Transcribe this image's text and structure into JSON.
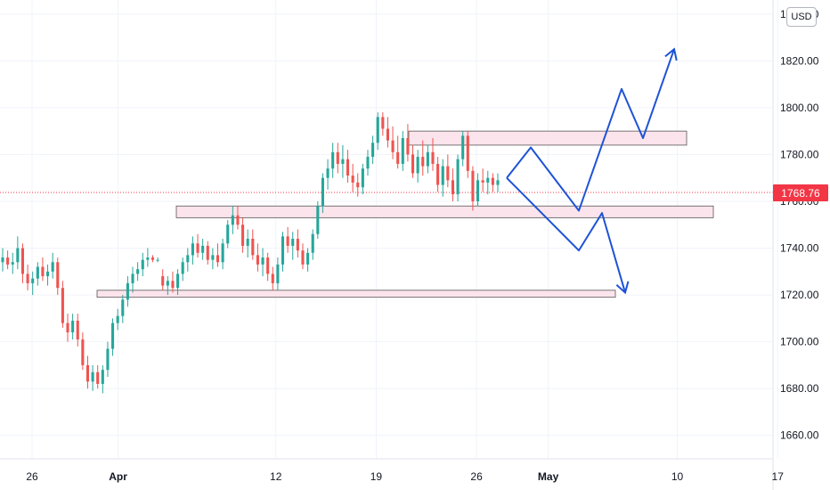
{
  "chart_data": {
    "type": "candlestick",
    "currency": "USD",
    "last_price": "1768.76",
    "y_ticks": [
      "1840.00",
      "1820.00",
      "1800.00",
      "1780.00",
      "1760.00",
      "1740.00",
      "1720.00",
      "1700.00",
      "1680.00",
      "1660.00"
    ],
    "x_ticks": [
      {
        "label": "26",
        "bold": false
      },
      {
        "label": "Apr",
        "bold": true
      },
      {
        "label": "12",
        "bold": false
      },
      {
        "label": "19",
        "bold": false
      },
      {
        "label": "26",
        "bold": false
      },
      {
        "label": "May",
        "bold": true
      },
      {
        "label": "10",
        "bold": false
      },
      {
        "label": "17",
        "bold": false
      }
    ],
    "ylim": [
      1650,
      1846
    ],
    "zones": [
      {
        "y_top": 1790,
        "y_bottom": 1784
      },
      {
        "y_top": 1758,
        "y_bottom": 1753
      },
      {
        "y_top": 1722,
        "y_bottom": 1719
      }
    ],
    "up_color": "#26a69a",
    "down_color": "#ef5350",
    "zone_fill": "#fce4ec",
    "arrow_color": "#1e53d6",
    "candles": [
      [
        1734,
        1740,
        1730,
        1736
      ],
      [
        1736,
        1739,
        1731,
        1733
      ],
      [
        1733,
        1738,
        1729,
        1734
      ],
      [
        1734,
        1745,
        1731,
        1740
      ],
      [
        1740,
        1742,
        1725,
        1729
      ],
      [
        1729,
        1733,
        1722,
        1725
      ],
      [
        1725,
        1730,
        1720,
        1727
      ],
      [
        1727,
        1734,
        1724,
        1732
      ],
      [
        1732,
        1736,
        1726,
        1728
      ],
      [
        1728,
        1733,
        1724,
        1730
      ],
      [
        1730,
        1738,
        1727,
        1734
      ],
      [
        1734,
        1736,
        1720,
        1723
      ],
      [
        1723,
        1726,
        1706,
        1708
      ],
      [
        1708,
        1712,
        1700,
        1704
      ],
      [
        1704,
        1712,
        1701,
        1709
      ],
      [
        1709,
        1712,
        1698,
        1701
      ],
      [
        1701,
        1704,
        1688,
        1690
      ],
      [
        1690,
        1694,
        1680,
        1683
      ],
      [
        1683,
        1690,
        1679,
        1687
      ],
      [
        1687,
        1690,
        1680,
        1682
      ],
      [
        1682,
        1690,
        1678,
        1688
      ],
      [
        1688,
        1700,
        1685,
        1697
      ],
      [
        1697,
        1710,
        1694,
        1708
      ],
      [
        1708,
        1714,
        1705,
        1711
      ],
      [
        1711,
        1720,
        1708,
        1718
      ],
      [
        1718,
        1728,
        1715,
        1725
      ],
      [
        1725,
        1732,
        1721,
        1729
      ],
      [
        1729,
        1734,
        1726,
        1731
      ],
      [
        1731,
        1738,
        1728,
        1735
      ],
      [
        1735,
        1740,
        1732,
        1736
      ],
      [
        1736,
        1737,
        1734,
        1735
      ],
      [
        1735,
        1736,
        1734,
        1735
      ],
      [
        1728,
        1731,
        1722,
        1724
      ],
      [
        1724,
        1728,
        1720,
        1726
      ],
      [
        1726,
        1730,
        1721,
        1723
      ],
      [
        1723,
        1731,
        1720,
        1729
      ],
      [
        1729,
        1736,
        1726,
        1734
      ],
      [
        1734,
        1740,
        1730,
        1737
      ],
      [
        1737,
        1745,
        1733,
        1742
      ],
      [
        1742,
        1746,
        1736,
        1738
      ],
      [
        1738,
        1744,
        1735,
        1741
      ],
      [
        1741,
        1743,
        1733,
        1735
      ],
      [
        1735,
        1740,
        1731,
        1737
      ],
      [
        1737,
        1742,
        1732,
        1734
      ],
      [
        1734,
        1744,
        1731,
        1742
      ],
      [
        1742,
        1752,
        1740,
        1750
      ],
      [
        1750,
        1758,
        1746,
        1754
      ],
      [
        1754,
        1758,
        1748,
        1750
      ],
      [
        1750,
        1753,
        1738,
        1741
      ],
      [
        1741,
        1748,
        1736,
        1744
      ],
      [
        1744,
        1748,
        1735,
        1737
      ],
      [
        1737,
        1742,
        1730,
        1733
      ],
      [
        1733,
        1740,
        1728,
        1736
      ],
      [
        1736,
        1738,
        1726,
        1729
      ],
      [
        1729,
        1732,
        1722,
        1725
      ],
      [
        1725,
        1736,
        1722,
        1733
      ],
      [
        1733,
        1747,
        1730,
        1745
      ],
      [
        1745,
        1749,
        1738,
        1741
      ],
      [
        1741,
        1747,
        1735,
        1744
      ],
      [
        1744,
        1748,
        1736,
        1739
      ],
      [
        1739,
        1742,
        1731,
        1733
      ],
      [
        1733,
        1740,
        1730,
        1738
      ],
      [
        1738,
        1748,
        1735,
        1746
      ],
      [
        1746,
        1760,
        1744,
        1758
      ],
      [
        1758,
        1772,
        1755,
        1770
      ],
      [
        1770,
        1778,
        1765,
        1774
      ],
      [
        1774,
        1785,
        1770,
        1781
      ],
      [
        1781,
        1785,
        1772,
        1776
      ],
      [
        1776,
        1784,
        1770,
        1778
      ],
      [
        1778,
        1782,
        1768,
        1771
      ],
      [
        1771,
        1776,
        1764,
        1768
      ],
      [
        1768,
        1772,
        1762,
        1766
      ],
      [
        1766,
        1776,
        1763,
        1774
      ],
      [
        1774,
        1782,
        1771,
        1779
      ],
      [
        1779,
        1788,
        1776,
        1785
      ],
      [
        1785,
        1798,
        1782,
        1796
      ],
      [
        1796,
        1798,
        1788,
        1791
      ],
      [
        1791,
        1796,
        1783,
        1786
      ],
      [
        1786,
        1792,
        1778,
        1781
      ],
      [
        1781,
        1788,
        1774,
        1776
      ],
      [
        1776,
        1790,
        1773,
        1787
      ],
      [
        1787,
        1793,
        1777,
        1780
      ],
      [
        1780,
        1784,
        1770,
        1772
      ],
      [
        1772,
        1782,
        1768,
        1779
      ],
      [
        1779,
        1786,
        1771,
        1775
      ],
      [
        1775,
        1784,
        1772,
        1781
      ],
      [
        1781,
        1787,
        1773,
        1776
      ],
      [
        1776,
        1779,
        1764,
        1767
      ],
      [
        1767,
        1778,
        1762,
        1775
      ],
      [
        1775,
        1780,
        1766,
        1769
      ],
      [
        1769,
        1774,
        1760,
        1763
      ],
      [
        1763,
        1780,
        1760,
        1778
      ],
      [
        1778,
        1790,
        1775,
        1788
      ],
      [
        1788,
        1790,
        1770,
        1773
      ],
      [
        1773,
        1775,
        1756,
        1760
      ],
      [
        1760,
        1772,
        1758,
        1769
      ],
      [
        1769,
        1774,
        1764,
        1768
      ],
      [
        1768,
        1773,
        1763,
        1770
      ],
      [
        1770,
        1772,
        1764,
        1767
      ],
      [
        1767,
        1772,
        1764,
        1769
      ]
    ],
    "arrows": [
      {
        "from_day": 40.5,
        "points": [
          [
            0,
            1770
          ],
          [
            1,
            1783
          ],
          [
            2,
            1756
          ],
          [
            3,
            1808
          ],
          [
            4,
            1787
          ],
          [
            5,
            1825
          ]
        ]
      },
      {
        "from_day": 40.5,
        "points": [
          [
            0,
            1770
          ],
          [
            2,
            1739
          ],
          [
            2.5,
            1755
          ],
          [
            3.3,
            1721
          ]
        ]
      }
    ]
  }
}
